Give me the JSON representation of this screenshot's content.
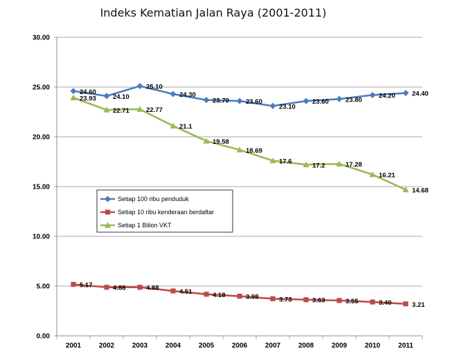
{
  "chart_data": {
    "type": "line",
    "title": "Indeks Kematian Jalan Raya (2001-2011)",
    "xlabel": "",
    "ylabel": "",
    "ylim": [
      0,
      30
    ],
    "yticks": [
      "0.00",
      "5.00",
      "10.00",
      "15.00",
      "20.00",
      "25.00",
      "30.00"
    ],
    "categories": [
      "2001",
      "2002",
      "2003",
      "2004",
      "2005",
      "2006",
      "2007",
      "2008",
      "2009",
      "2010",
      "2011"
    ],
    "grid": "horizontal",
    "legend_position": "center-left",
    "series": [
      {
        "name": "Setiap 100 ribu penduduk",
        "color": "#4a7ebb",
        "marker": "diamond",
        "values": [
          24.6,
          24.1,
          25.1,
          24.3,
          23.7,
          23.6,
          23.1,
          23.6,
          23.8,
          24.2,
          24.4
        ],
        "labels": [
          "24.60",
          "24.10",
          "25.10",
          "24.30",
          "23.70",
          "23.60",
          "23.10",
          "23.60",
          "23.80",
          "24.20",
          "24.40"
        ]
      },
      {
        "name": "Setiap 10 ribu kenderaan berdaftar",
        "color": "#be4b48",
        "marker": "square",
        "values": [
          5.17,
          4.88,
          4.88,
          4.51,
          4.18,
          3.98,
          3.73,
          3.63,
          3.55,
          3.4,
          3.21
        ],
        "labels": [
          "5.17",
          "4.88",
          "4.88",
          "4.51",
          "4.18",
          "3.98",
          "3.73",
          "3.63",
          "3.55",
          "3.40",
          "3.21"
        ]
      },
      {
        "name": "Setiap 1 Bilion VKT",
        "color": "#98b954",
        "marker": "triangle",
        "values": [
          23.93,
          22.71,
          22.77,
          21.1,
          19.58,
          18.69,
          17.6,
          17.2,
          17.28,
          16.21,
          14.68
        ],
        "labels": [
          "23.93",
          "22.71",
          "22.77",
          "21.1",
          "19.58",
          "18.69",
          "17.6",
          "17.2",
          "17.28",
          "16.21",
          "14.68"
        ]
      }
    ]
  }
}
